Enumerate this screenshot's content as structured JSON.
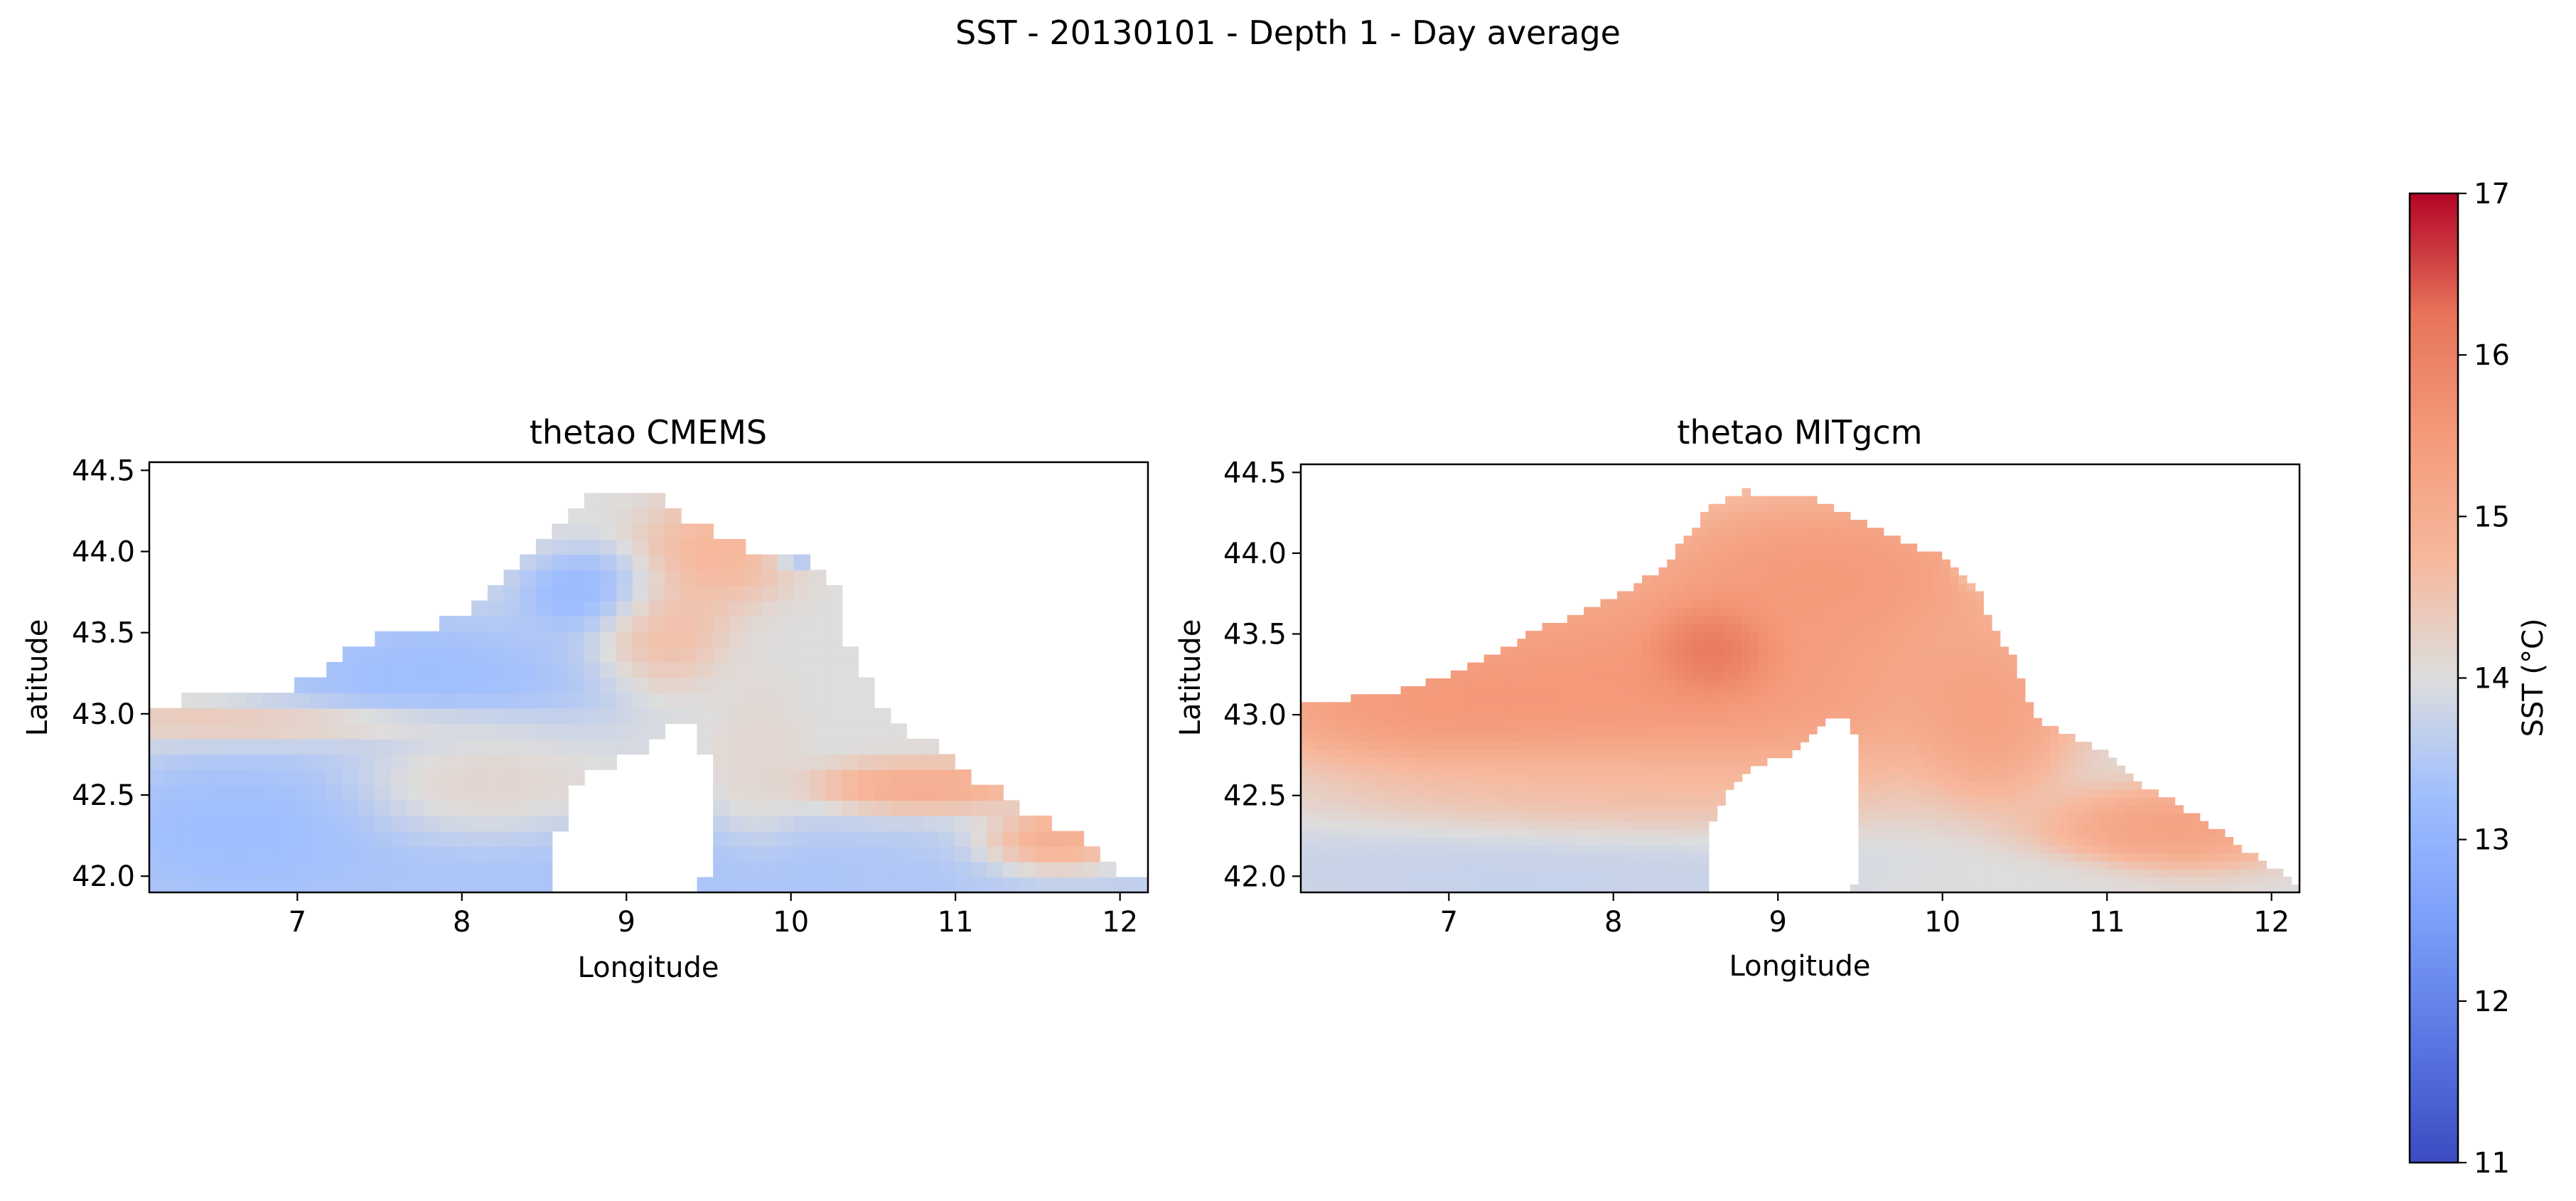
{
  "figure": {
    "suptitle": "SST - 20130101 - Depth 1 - Day average"
  },
  "chart_data": [
    {
      "type": "heatmap",
      "title": "thetao CMEMS",
      "xlabel": "Longitude",
      "ylabel": "Latitude",
      "xlim": [
        6.1,
        12.17
      ],
      "ylim": [
        41.9,
        44.55
      ],
      "x_ticks": [
        7,
        8,
        9,
        10,
        11,
        12
      ],
      "x_tick_labels": [
        "7",
        "8",
        "9",
        "10",
        "11",
        "12"
      ],
      "y_ticks": [
        42.0,
        42.5,
        43.0,
        43.5,
        44.0,
        44.5
      ],
      "y_tick_labels": [
        "42.0",
        "42.5",
        "43.0",
        "43.5",
        "44.0",
        "44.5"
      ],
      "colormap": "coolwarm",
      "vmin": 11,
      "vmax": 17,
      "pixelated": true,
      "sea_boundary": [
        [
          6.1,
          43.07
        ],
        [
          6.6,
          43.1
        ],
        [
          7.0,
          43.18
        ],
        [
          7.3,
          43.36
        ],
        [
          7.6,
          43.5
        ],
        [
          8.0,
          43.6
        ],
        [
          8.3,
          43.85
        ],
        [
          8.5,
          44.1
        ],
        [
          8.7,
          44.3
        ],
        [
          8.9,
          44.4
        ],
        [
          9.2,
          44.32
        ],
        [
          9.5,
          44.12
        ],
        [
          9.8,
          44.0
        ],
        [
          10.1,
          43.95
        ],
        [
          10.25,
          43.8
        ],
        [
          10.3,
          43.55
        ],
        [
          10.45,
          43.25
        ],
        [
          10.55,
          43.0
        ],
        [
          10.6,
          42.95
        ],
        [
          10.8,
          42.85
        ],
        [
          11.0,
          42.68
        ],
        [
          11.2,
          42.55
        ],
        [
          11.5,
          42.38
        ],
        [
          11.8,
          42.2
        ],
        [
          12.0,
          42.05
        ],
        [
          12.17,
          41.95
        ],
        [
          12.17,
          41.9
        ],
        [
          6.1,
          41.9
        ]
      ],
      "corsica": [
        [
          8.55,
          41.9
        ],
        [
          8.58,
          42.1
        ],
        [
          8.6,
          42.35
        ],
        [
          8.7,
          42.55
        ],
        [
          8.9,
          42.7
        ],
        [
          9.1,
          42.75
        ],
        [
          9.3,
          42.95
        ],
        [
          9.45,
          43.02
        ],
        [
          9.47,
          42.8
        ],
        [
          9.5,
          42.5
        ],
        [
          9.5,
          42.1
        ],
        [
          9.45,
          41.9
        ]
      ],
      "features": [
        {
          "x": 9.0,
          "y": 42.0,
          "sx": 2.8,
          "sy": 0.3,
          "value": 13.2
        },
        {
          "x": 6.6,
          "y": 42.3,
          "sx": 0.8,
          "sy": 0.4,
          "value": 13.0
        },
        {
          "x": 7.8,
          "y": 43.2,
          "sx": 0.9,
          "sy": 0.35,
          "value": 13.0
        },
        {
          "x": 8.8,
          "y": 43.75,
          "sx": 0.35,
          "sy": 0.2,
          "value": 12.8
        },
        {
          "x": 7.0,
          "y": 42.95,
          "sx": 1.0,
          "sy": 0.1,
          "value": 14.8
        },
        {
          "x": 8.1,
          "y": 42.6,
          "sx": 0.5,
          "sy": 0.3,
          "value": 14.3
        },
        {
          "x": 9.55,
          "y": 44.0,
          "sx": 0.35,
          "sy": 0.25,
          "value": 15.0
        },
        {
          "x": 9.2,
          "y": 43.55,
          "sx": 0.3,
          "sy": 0.3,
          "value": 14.9
        },
        {
          "x": 10.8,
          "y": 42.55,
          "sx": 0.5,
          "sy": 0.12,
          "value": 15.4
        },
        {
          "x": 11.6,
          "y": 42.2,
          "sx": 0.35,
          "sy": 0.15,
          "value": 15.7
        },
        {
          "x": 10.05,
          "y": 44.05,
          "sx": 0.15,
          "sy": 0.1,
          "value": 12.5
        },
        {
          "x": 9.8,
          "y": 42.7,
          "sx": 0.2,
          "sy": 0.4,
          "value": 14.2
        }
      ],
      "base_value": 14.0
    },
    {
      "type": "heatmap",
      "title": "thetao MITgcm",
      "xlabel": "Longitude",
      "ylabel": "Latitude",
      "xlim": [
        6.1,
        12.17
      ],
      "ylim": [
        41.9,
        44.55
      ],
      "x_ticks": [
        7,
        8,
        9,
        10,
        11,
        12
      ],
      "x_tick_labels": [
        "7",
        "8",
        "9",
        "10",
        "11",
        "12"
      ],
      "y_ticks": [
        42.0,
        42.5,
        43.0,
        43.5,
        44.0,
        44.5
      ],
      "y_tick_labels": [
        "42.0",
        "42.5",
        "43.0",
        "43.5",
        "44.0",
        "44.5"
      ],
      "colormap": "coolwarm",
      "vmin": 11,
      "vmax": 17,
      "pixelated": false,
      "sea_boundary": [
        [
          6.1,
          43.07
        ],
        [
          6.6,
          43.12
        ],
        [
          7.0,
          43.25
        ],
        [
          7.3,
          43.4
        ],
        [
          7.6,
          43.55
        ],
        [
          8.0,
          43.72
        ],
        [
          8.3,
          43.9
        ],
        [
          8.45,
          44.1
        ],
        [
          8.6,
          44.3
        ],
        [
          8.8,
          44.38
        ],
        [
          9.2,
          44.35
        ],
        [
          9.5,
          44.2
        ],
        [
          9.8,
          44.05
        ],
        [
          10.0,
          43.98
        ],
        [
          10.2,
          43.8
        ],
        [
          10.28,
          43.6
        ],
        [
          10.4,
          43.4
        ],
        [
          10.5,
          43.2
        ],
        [
          10.55,
          43.0
        ],
        [
          10.7,
          42.9
        ],
        [
          11.0,
          42.75
        ],
        [
          11.2,
          42.58
        ],
        [
          11.5,
          42.4
        ],
        [
          11.8,
          42.2
        ],
        [
          12.0,
          42.05
        ],
        [
          12.17,
          41.95
        ],
        [
          12.17,
          41.9
        ],
        [
          6.1,
          41.9
        ]
      ],
      "corsica": [
        [
          8.55,
          41.9
        ],
        [
          8.58,
          42.1
        ],
        [
          8.6,
          42.35
        ],
        [
          8.7,
          42.55
        ],
        [
          8.9,
          42.7
        ],
        [
          9.1,
          42.75
        ],
        [
          9.3,
          42.95
        ],
        [
          9.45,
          43.02
        ],
        [
          9.47,
          42.8
        ],
        [
          9.5,
          42.5
        ],
        [
          9.5,
          42.1
        ],
        [
          9.45,
          41.9
        ]
      ],
      "features": [
        {
          "x": 7.5,
          "y": 42.05,
          "sx": 1.6,
          "sy": 0.25,
          "value": 13.6
        },
        {
          "x": 10.3,
          "y": 41.98,
          "sx": 0.8,
          "sy": 0.12,
          "value": 14.0
        },
        {
          "x": 7.9,
          "y": 42.55,
          "sx": 1.2,
          "sy": 0.25,
          "value": 14.6
        },
        {
          "x": 8.6,
          "y": 43.4,
          "sx": 0.28,
          "sy": 0.22,
          "value": 16.9
        },
        {
          "x": 8.3,
          "y": 43.2,
          "sx": 1.6,
          "sy": 0.55,
          "value": 16.0
        },
        {
          "x": 9.3,
          "y": 43.9,
          "sx": 0.9,
          "sy": 0.4,
          "value": 15.9
        },
        {
          "x": 6.9,
          "y": 43.05,
          "sx": 0.9,
          "sy": 0.25,
          "value": 15.8
        },
        {
          "x": 10.3,
          "y": 43.0,
          "sx": 0.35,
          "sy": 0.4,
          "value": 15.6
        },
        {
          "x": 11.4,
          "y": 42.3,
          "sx": 0.6,
          "sy": 0.2,
          "value": 15.7
        },
        {
          "x": 10.25,
          "y": 43.95,
          "sx": 0.12,
          "sy": 0.12,
          "value": 12.2
        }
      ],
      "base_value": 14.0
    }
  ],
  "colorbar": {
    "label": "SST (°C)",
    "ticks": [
      11,
      12,
      13,
      14,
      15,
      16,
      17
    ],
    "tick_labels": [
      "11",
      "12",
      "13",
      "14",
      "15",
      "16",
      "17"
    ],
    "vmin": 11,
    "vmax": 17,
    "colormap": "coolwarm"
  }
}
